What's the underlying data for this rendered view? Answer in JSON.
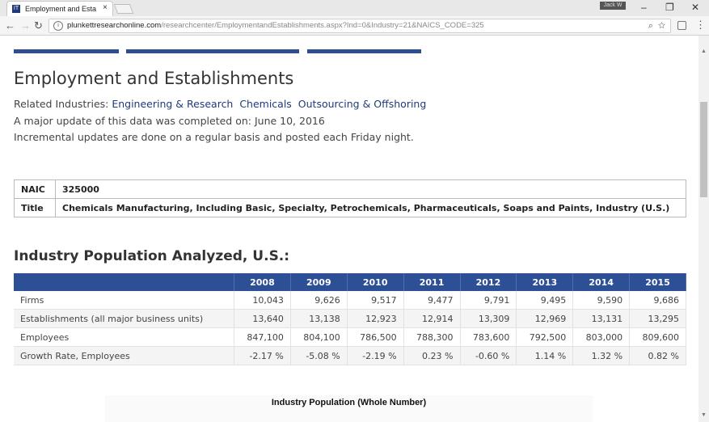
{
  "browser": {
    "tab_title": "Employment and Establi",
    "tab_close": "×",
    "favicon_text": "IT",
    "profile_label": "Jack W",
    "url_host": "plunkettresearchonline.com",
    "url_path": "/researchcenter/EmploymentandEstablishments.aspx?Ind=0&Industry=21&NAICS_CODE=325",
    "icons": [
      "back-icon",
      "forward-icon",
      "reload-icon",
      "info-icon",
      "zoom-icon",
      "star-icon",
      "extension-icon",
      "menu-icon"
    ]
  },
  "page": {
    "title": "Employment and Establishments",
    "related_label": "Related Industries: ",
    "related_links": [
      "Engineering & Research",
      "Chemicals",
      "Outsourcing & Offshoring"
    ],
    "update_text": "A major update of this data was completed on: June 10, 2016",
    "incremental_text": "Incremental updates are done on a regular basis and posted each Friday night."
  },
  "naic": {
    "rows": [
      {
        "key": "NAIC",
        "value": "325000"
      },
      {
        "key": "Title",
        "value": "Chemicals Manufacturing, Including Basic, Specialty, Petrochemicals, Pharmaceuticals, Soaps and Paints, Industry (U.S.)"
      }
    ]
  },
  "population": {
    "title": "Industry Population Analyzed, U.S.:",
    "years": [
      "2008",
      "2009",
      "2010",
      "2011",
      "2012",
      "2013",
      "2014",
      "2015"
    ],
    "rows": [
      {
        "label": "Firms",
        "values": [
          "10,043",
          "9,626",
          "9,517",
          "9,477",
          "9,791",
          "9,495",
          "9,590",
          "9,686"
        ]
      },
      {
        "label": "Establishments (all major business units)",
        "values": [
          "13,640",
          "13,138",
          "12,923",
          "12,914",
          "13,309",
          "12,969",
          "13,131",
          "13,295"
        ]
      },
      {
        "label": "Employees",
        "values": [
          "847,100",
          "804,100",
          "786,500",
          "788,300",
          "783,600",
          "792,500",
          "803,000",
          "809,600"
        ]
      },
      {
        "label": "Growth Rate, Employees",
        "values": [
          "-2.17 %",
          "-5.08 %",
          "-2.19 %",
          "0.23 %",
          "-0.60 %",
          "1.14 %",
          "1.32 %",
          "0.82 %"
        ]
      }
    ]
  },
  "chart": {
    "title": "Industry Population (Whole Number)"
  },
  "colors": {
    "accent": "#2d4f96",
    "link": "#1f3a7a"
  }
}
